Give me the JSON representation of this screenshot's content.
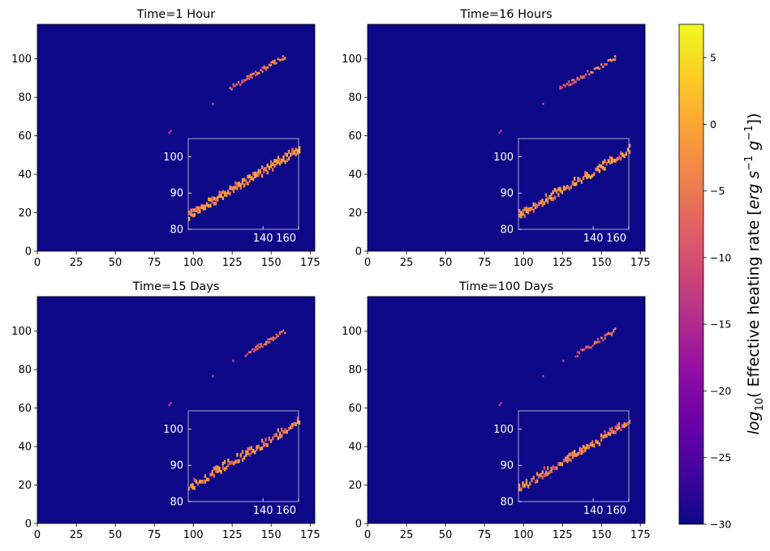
{
  "chart_data": {
    "type": "heatmap",
    "panels": [
      {
        "title": "Time=1 Hour",
        "xlim": [
          0,
          178
        ],
        "ylim": [
          0,
          118
        ],
        "xticks": [
          0,
          25,
          50,
          75,
          100,
          125,
          150,
          175
        ],
        "yticks": [
          0,
          20,
          40,
          60,
          80,
          100
        ],
        "background_value": -30,
        "isolated_points": [
          [
            85,
            62,
            -13
          ],
          [
            84,
            61,
            -14
          ],
          [
            112,
            76,
            -12
          ]
        ],
        "band": {
          "x_start": 123,
          "x_end": 159,
          "y_at_start": 84,
          "y_at_end": 101,
          "peak_value": 3
        },
        "inset": {
          "xlim": [
            98,
            160
          ],
          "ylim": [
            80,
            105
          ],
          "xticks": [
            140,
            160
          ],
          "yticks": [
            80,
            90,
            100
          ],
          "band": {
            "x_start": 98,
            "x_end": 160,
            "y_at_start": 83,
            "y_at_end": 101,
            "peak_value": 3
          }
        }
      },
      {
        "title": "Time=16 Hours",
        "xlim": [
          0,
          178
        ],
        "ylim": [
          0,
          118
        ],
        "xticks": [
          0,
          25,
          50,
          75,
          100,
          125,
          150,
          175
        ],
        "yticks": [
          0,
          20,
          40,
          60,
          80,
          100
        ],
        "background_value": -30,
        "isolated_points": [
          [
            85,
            62,
            -13
          ],
          [
            84,
            61,
            -14
          ],
          [
            112,
            76,
            -12
          ]
        ],
        "band": {
          "x_start": 123,
          "x_end": 159,
          "y_at_start": 84,
          "y_at_end": 100,
          "peak_value": 3
        },
        "inset": {
          "xlim": [
            98,
            160
          ],
          "ylim": [
            80,
            105
          ],
          "xticks": [
            140,
            160
          ],
          "yticks": [
            80,
            90,
            100
          ],
          "band": {
            "x_start": 98,
            "x_end": 160,
            "y_at_start": 83,
            "y_at_end": 101,
            "peak_value": 3
          }
        }
      },
      {
        "title": "Time=15 Days",
        "xlim": [
          0,
          178
        ],
        "ylim": [
          0,
          118
        ],
        "xticks": [
          0,
          25,
          50,
          75,
          100,
          125,
          150,
          175
        ],
        "yticks": [
          0,
          20,
          40,
          60,
          80,
          100
        ],
        "background_value": -30,
        "isolated_points": [
          [
            85,
            62,
            -13
          ],
          [
            84,
            61,
            -14
          ],
          [
            112,
            76,
            -12
          ],
          [
            125,
            84,
            -12
          ]
        ],
        "band": {
          "x_start": 133,
          "x_end": 159,
          "y_at_start": 87,
          "y_at_end": 100,
          "peak_value": 2
        },
        "inset": {
          "xlim": [
            98,
            160
          ],
          "ylim": [
            80,
            105
          ],
          "xticks": [
            140,
            160
          ],
          "yticks": [
            80,
            90,
            100
          ],
          "band": {
            "x_start": 98,
            "x_end": 160,
            "y_at_start": 83,
            "y_at_end": 101,
            "peak_value": 2
          }
        }
      },
      {
        "title": "Time=100 Days",
        "xlim": [
          0,
          178
        ],
        "ylim": [
          0,
          118
        ],
        "xticks": [
          0,
          25,
          50,
          75,
          100,
          125,
          150,
          175
        ],
        "yticks": [
          0,
          20,
          40,
          60,
          80,
          100
        ],
        "background_value": -30,
        "isolated_points": [
          [
            85,
            62,
            -13
          ],
          [
            84,
            61,
            -14
          ],
          [
            112,
            76,
            -12
          ],
          [
            125,
            84,
            -12
          ]
        ],
        "band": {
          "x_start": 133,
          "x_end": 159,
          "y_at_start": 87,
          "y_at_end": 100,
          "peak_value": 1
        },
        "inset": {
          "xlim": [
            98,
            160
          ],
          "ylim": [
            80,
            105
          ],
          "xticks": [
            140,
            160
          ],
          "yticks": [
            80,
            90,
            100
          ],
          "band": {
            "x_start": 98,
            "x_end": 160,
            "y_at_start": 83,
            "y_at_end": 101,
            "peak_value": 1
          }
        }
      }
    ],
    "colorbar": {
      "colormap": "plasma",
      "vmin": -30,
      "vmax": 7.5,
      "ticks": [
        5,
        0,
        -5,
        -10,
        -15,
        -20,
        -25,
        -30
      ],
      "tick_labels": [
        "5",
        "0",
        "−5",
        "−10",
        "−15",
        "−20",
        "−25",
        "−30"
      ],
      "label": "log10( Effective heating rate [erg s−1 g−1])"
    }
  }
}
